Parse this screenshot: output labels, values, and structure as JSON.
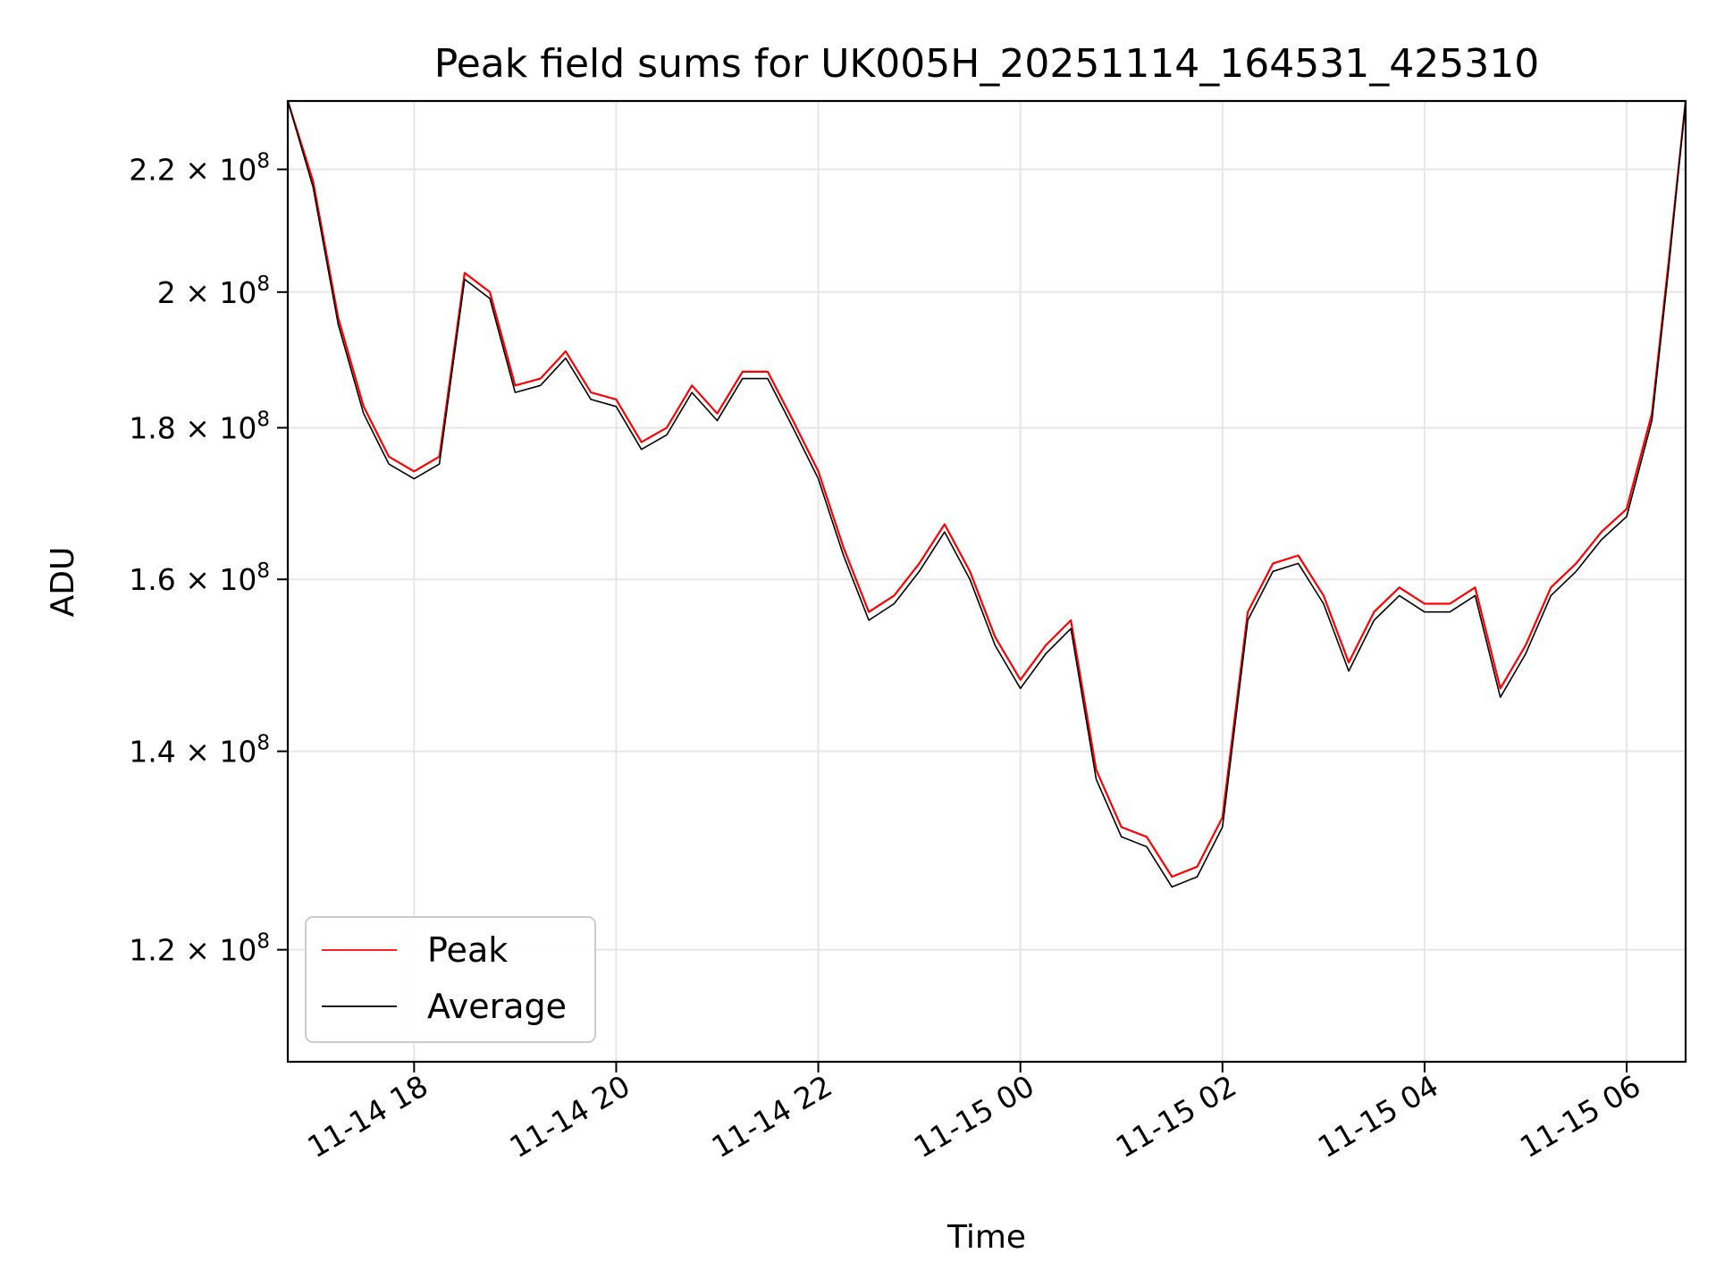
{
  "chart_data": {
    "type": "line",
    "title": "Peak field sums for UK005H_20251114_164531_425310",
    "xlabel": "Time",
    "ylabel": "ADU",
    "y_scale": "log",
    "grid": true,
    "legend_position": "lower-left",
    "xlim": [
      "2025-11-14 16:45",
      "2025-11-15 06:35"
    ],
    "ylim": [
      110000000,
      232000000
    ],
    "x_ticks": [
      {
        "value": "2025-11-14 18:00",
        "label": "11-14 18"
      },
      {
        "value": "2025-11-14 20:00",
        "label": "11-14 20"
      },
      {
        "value": "2025-11-14 22:00",
        "label": "11-14 22"
      },
      {
        "value": "2025-11-15 00:00",
        "label": "11-15 00"
      },
      {
        "value": "2025-11-15 02:00",
        "label": "11-15 02"
      },
      {
        "value": "2025-11-15 04:00",
        "label": "11-15 04"
      },
      {
        "value": "2025-11-15 06:00",
        "label": "11-15 06"
      }
    ],
    "y_ticks": [
      {
        "value": 120000000,
        "mantissa": "1.2",
        "exponent": "8"
      },
      {
        "value": 140000000,
        "mantissa": "1.4",
        "exponent": "8"
      },
      {
        "value": 160000000,
        "mantissa": "1.6",
        "exponent": "8"
      },
      {
        "value": 180000000,
        "mantissa": "1.8",
        "exponent": "8"
      },
      {
        "value": 200000000,
        "mantissa": "2",
        "exponent": "8"
      },
      {
        "value": 220000000,
        "mantissa": "2.2",
        "exponent": "8"
      }
    ],
    "series": [
      {
        "name": "Peak",
        "color": "#ff0000",
        "x": [
          "2025-11-14 16:45",
          "2025-11-14 17:00",
          "2025-11-14 17:15",
          "2025-11-14 17:30",
          "2025-11-14 17:45",
          "2025-11-14 18:00",
          "2025-11-14 18:15",
          "2025-11-14 18:30",
          "2025-11-14 18:45",
          "2025-11-14 19:00",
          "2025-11-14 19:15",
          "2025-11-14 19:30",
          "2025-11-14 19:45",
          "2025-11-14 20:00",
          "2025-11-14 20:15",
          "2025-11-14 20:30",
          "2025-11-14 20:45",
          "2025-11-14 21:00",
          "2025-11-14 21:15",
          "2025-11-14 21:30",
          "2025-11-14 21:45",
          "2025-11-14 22:00",
          "2025-11-14 22:15",
          "2025-11-14 22:30",
          "2025-11-14 22:45",
          "2025-11-14 23:00",
          "2025-11-14 23:15",
          "2025-11-14 23:30",
          "2025-11-14 23:45",
          "2025-11-15 00:00",
          "2025-11-15 00:15",
          "2025-11-15 00:30",
          "2025-11-15 00:45",
          "2025-11-15 01:00",
          "2025-11-15 01:15",
          "2025-11-15 01:30",
          "2025-11-15 01:45",
          "2025-11-15 02:00",
          "2025-11-15 02:15",
          "2025-11-15 02:30",
          "2025-11-15 02:45",
          "2025-11-15 03:00",
          "2025-11-15 03:15",
          "2025-11-15 03:30",
          "2025-11-15 03:45",
          "2025-11-15 04:00",
          "2025-11-15 04:15",
          "2025-11-15 04:30",
          "2025-11-15 04:45",
          "2025-11-15 05:00",
          "2025-11-15 05:15",
          "2025-11-15 05:30",
          "2025-11-15 05:45",
          "2025-11-15 06:00",
          "2025-11-15 06:15",
          "2025-11-15 06:25",
          "2025-11-15 06:35"
        ],
        "values": [
          232000000,
          218000000,
          196000000,
          183000000,
          176000000,
          174000000,
          176000000,
          203000000,
          200000000,
          186000000,
          187000000,
          191000000,
          185000000,
          184000000,
          178000000,
          180000000,
          186000000,
          182000000,
          188000000,
          188000000,
          181000000,
          174000000,
          164000000,
          156000000,
          158000000,
          162000000,
          167000000,
          161000000,
          153000000,
          148000000,
          152000000,
          155000000,
          138000000,
          132000000,
          131000000,
          127000000,
          128000000,
          133000000,
          156000000,
          162000000,
          163000000,
          158000000,
          150000000,
          156000000,
          159000000,
          157000000,
          157000000,
          159000000,
          147000000,
          152000000,
          159000000,
          162000000,
          166000000,
          169000000,
          182000000,
          205000000,
          232000000
        ]
      },
      {
        "name": "Average",
        "color": "#000000",
        "x": [
          "2025-11-14 16:45",
          "2025-11-14 17:00",
          "2025-11-14 17:15",
          "2025-11-14 17:30",
          "2025-11-14 17:45",
          "2025-11-14 18:00",
          "2025-11-14 18:15",
          "2025-11-14 18:30",
          "2025-11-14 18:45",
          "2025-11-14 19:00",
          "2025-11-14 19:15",
          "2025-11-14 19:30",
          "2025-11-14 19:45",
          "2025-11-14 20:00",
          "2025-11-14 20:15",
          "2025-11-14 20:30",
          "2025-11-14 20:45",
          "2025-11-14 21:00",
          "2025-11-14 21:15",
          "2025-11-14 21:30",
          "2025-11-14 21:45",
          "2025-11-14 22:00",
          "2025-11-14 22:15",
          "2025-11-14 22:30",
          "2025-11-14 22:45",
          "2025-11-14 23:00",
          "2025-11-14 23:15",
          "2025-11-14 23:30",
          "2025-11-14 23:45",
          "2025-11-15 00:00",
          "2025-11-15 00:15",
          "2025-11-15 00:30",
          "2025-11-15 00:45",
          "2025-11-15 01:00",
          "2025-11-15 01:15",
          "2025-11-15 01:30",
          "2025-11-15 01:45",
          "2025-11-15 02:00",
          "2025-11-15 02:15",
          "2025-11-15 02:30",
          "2025-11-15 02:45",
          "2025-11-15 03:00",
          "2025-11-15 03:15",
          "2025-11-15 03:30",
          "2025-11-15 03:45",
          "2025-11-15 04:00",
          "2025-11-15 04:15",
          "2025-11-15 04:30",
          "2025-11-15 04:45",
          "2025-11-15 05:00",
          "2025-11-15 05:15",
          "2025-11-15 05:30",
          "2025-11-15 05:45",
          "2025-11-15 06:00",
          "2025-11-15 06:15",
          "2025-11-15 06:25",
          "2025-11-15 06:35"
        ],
        "values": [
          232000000,
          217000000,
          195000000,
          182000000,
          175000000,
          173000000,
          175000000,
          202000000,
          199000000,
          185000000,
          186000000,
          190000000,
          184000000,
          183000000,
          177000000,
          179000000,
          185000000,
          181000000,
          187000000,
          187000000,
          180000000,
          173000000,
          163000000,
          155000000,
          157000000,
          161000000,
          166000000,
          160000000,
          152000000,
          147000000,
          151000000,
          154000000,
          137000000,
          131000000,
          130000000,
          126000000,
          127000000,
          132000000,
          155000000,
          161000000,
          162000000,
          157000000,
          149000000,
          155000000,
          158000000,
          156000000,
          156000000,
          158000000,
          146000000,
          151000000,
          158000000,
          161000000,
          165000000,
          168000000,
          181000000,
          204000000,
          232000000
        ]
      }
    ]
  }
}
